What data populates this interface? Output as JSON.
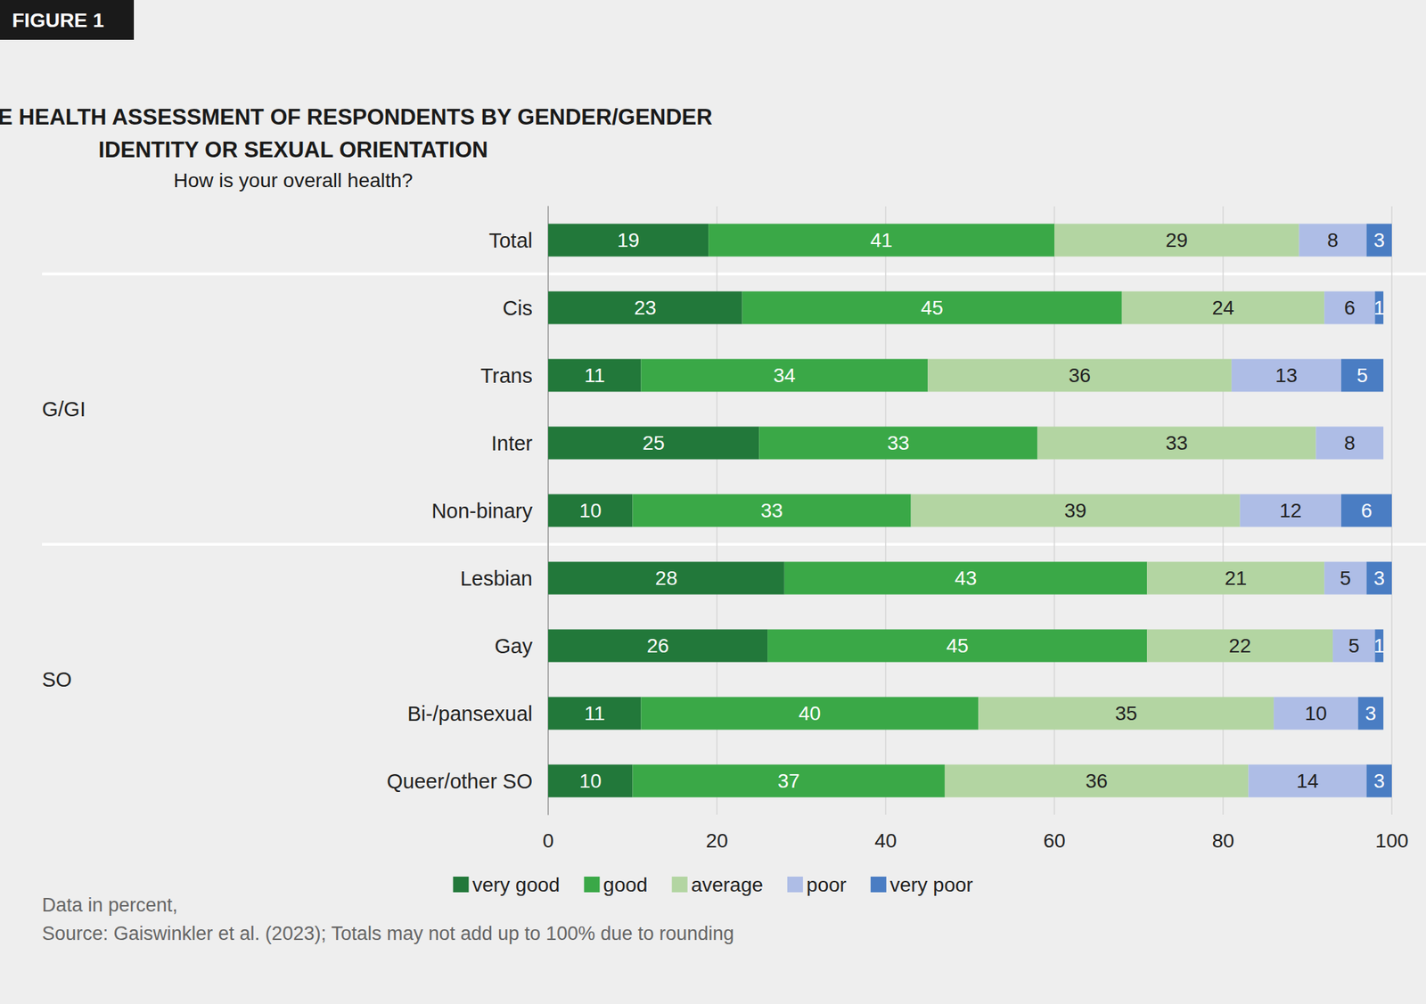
{
  "chart_data": {
    "type": "bar",
    "figure_label": "FIGURE 1",
    "title": "SUBJECTIVE HEALTH ASSESSMENT OF RESPONDENTS BY GENDER/GENDER\nIDENTITY OR SEXUAL ORIENTATION",
    "subtitle": "How is your overall health?",
    "orientation": "horizontal",
    "stacked": true,
    "data_labels": true,
    "grid": true,
    "legend": "bottom",
    "categories": [
      "Total",
      "Cis",
      "Trans",
      "Inter",
      "Non-binary",
      "Lesbian",
      "Gay",
      "Bi-/pansexual",
      "Queer/other SO"
    ],
    "groups": [
      {
        "label": "G/GI",
        "members": [
          "Cis",
          "Trans",
          "Inter",
          "Non-binary"
        ]
      },
      {
        "label": "SO",
        "members": [
          "Lesbian",
          "Gay",
          "Bi-/pansexual",
          "Queer/other SO"
        ]
      }
    ],
    "series": [
      {
        "name": "very good",
        "color": "#22783a",
        "values": [
          19,
          23,
          11,
          25,
          10,
          28,
          26,
          11,
          10
        ]
      },
      {
        "name": "good",
        "color": "#3aa847",
        "values": [
          41,
          45,
          34,
          33,
          33,
          43,
          45,
          40,
          37
        ]
      },
      {
        "name": "average",
        "color": "#b3d5a2",
        "values": [
          29,
          24,
          36,
          33,
          39,
          21,
          22,
          35,
          36
        ]
      },
      {
        "name": "poor",
        "color": "#aebde6",
        "values": [
          8,
          6,
          13,
          8,
          12,
          5,
          5,
          10,
          14
        ]
      },
      {
        "name": "very poor",
        "color": "#4a7dc3",
        "values": [
          3,
          1,
          5,
          null,
          6,
          3,
          1,
          3,
          3
        ]
      }
    ],
    "xlim": [
      0,
      100
    ],
    "xticks": [
      0,
      20,
      40,
      60,
      80,
      100
    ],
    "notes": [
      "Data in percent,",
      "Source: Gaiswinkler et al. (2023); Totals may not add up to 100% due to rounding"
    ]
  }
}
